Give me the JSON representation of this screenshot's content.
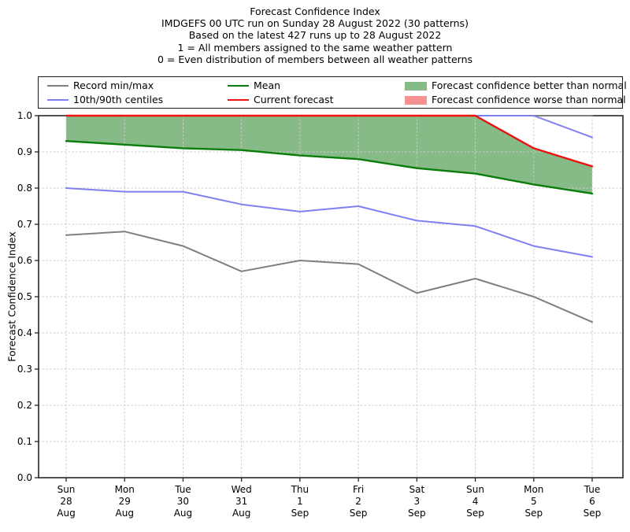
{
  "header": {
    "title": "Forecast Confidence Index",
    "lines": [
      "IMDGEFS 00 UTC run on Sunday 28 August 2022 (30 patterns)",
      "Based on the latest 427 runs up to 28 August 2022",
      "1 = All members assigned to the same weather pattern",
      "0 = Even distribution of members between all weather patterns"
    ]
  },
  "colors": {
    "record": "#7f7f7f",
    "centiles": "#7f7ff2",
    "mean": "#0a7d0a",
    "forecast": "#ee1111",
    "fill_better": "#86ba86",
    "fill_worse": "#f79090",
    "grid": "#cccccc",
    "frame": "#262626"
  },
  "legend": {
    "columns": [
      {
        "items": [
          {
            "type": "line",
            "color": "#7f7f7f",
            "label": "Record min/max"
          },
          {
            "type": "line",
            "color": "#7f7ff2",
            "label": "10th/90th centiles"
          }
        ]
      },
      {
        "items": [
          {
            "type": "line",
            "color": "#0a7d0a",
            "label": "Mean"
          },
          {
            "type": "line",
            "color": "#ee1111",
            "label": "Current forecast"
          }
        ]
      },
      {
        "items": [
          {
            "type": "patch",
            "color": "#86ba86",
            "label": "Forecast confidence better than normal"
          },
          {
            "type": "patch",
            "color": "#f79090",
            "label": "Forecast confidence worse than normal"
          }
        ]
      }
    ]
  },
  "chart_data": {
    "type": "line",
    "title": "Forecast Confidence Index",
    "ylabel": "Forecast Confidence Index",
    "ylim": [
      0.0,
      1.0
    ],
    "ytick_step": 0.1,
    "y_ticks": [
      "0.0",
      "0.1",
      "0.2",
      "0.3",
      "0.4",
      "0.5",
      "0.6",
      "0.7",
      "0.8",
      "0.9",
      "1.0"
    ],
    "grid": true,
    "legend_position": "top",
    "x_labels": [
      [
        "Sun",
        "28",
        "Aug"
      ],
      [
        "Mon",
        "29",
        "Aug"
      ],
      [
        "Tue",
        "30",
        "Aug"
      ],
      [
        "Wed",
        "31",
        "Aug"
      ],
      [
        "Thu",
        "1",
        "Sep"
      ],
      [
        "Fri",
        "2",
        "Sep"
      ],
      [
        "Sat",
        "3",
        "Sep"
      ],
      [
        "Sun",
        "4",
        "Sep"
      ],
      [
        "Mon",
        "5",
        "Sep"
      ],
      [
        "Tue",
        "6",
        "Sep"
      ]
    ],
    "series": [
      {
        "name": "Record max",
        "color": "#7f7f7f",
        "width": 2,
        "values": [
          1.0,
          1.0,
          1.0,
          1.0,
          1.0,
          1.0,
          1.0,
          1.0,
          1.0,
          1.0
        ]
      },
      {
        "name": "Record min",
        "color": "#7f7f7f",
        "width": 2,
        "values": [
          0.67,
          0.68,
          0.64,
          0.57,
          0.6,
          0.59,
          0.51,
          0.55,
          0.5,
          0.43
        ]
      },
      {
        "name": "90th centile",
        "color": "#7f7ff2",
        "width": 2,
        "values": [
          1.0,
          1.0,
          1.0,
          1.0,
          1.0,
          1.0,
          1.0,
          1.0,
          1.0,
          0.94
        ]
      },
      {
        "name": "10th centile",
        "color": "#7f7ff2",
        "width": 2,
        "values": [
          0.8,
          0.79,
          0.79,
          0.755,
          0.735,
          0.75,
          0.71,
          0.695,
          0.64,
          0.61
        ]
      },
      {
        "name": "Mean",
        "color": "#0a7d0a",
        "width": 2.4,
        "values": [
          0.93,
          0.92,
          0.91,
          0.905,
          0.89,
          0.88,
          0.855,
          0.84,
          0.81,
          0.785
        ]
      },
      {
        "name": "Current forecast",
        "color": "#ee1111",
        "width": 2.4,
        "values": [
          1.0,
          1.0,
          1.0,
          1.0,
          1.0,
          1.0,
          1.0,
          1.0,
          0.91,
          0.86
        ]
      }
    ],
    "fill_between": {
      "upper": "Current forecast",
      "lower": "Mean",
      "color": "#86ba86",
      "label": "Forecast confidence better than normal"
    }
  }
}
